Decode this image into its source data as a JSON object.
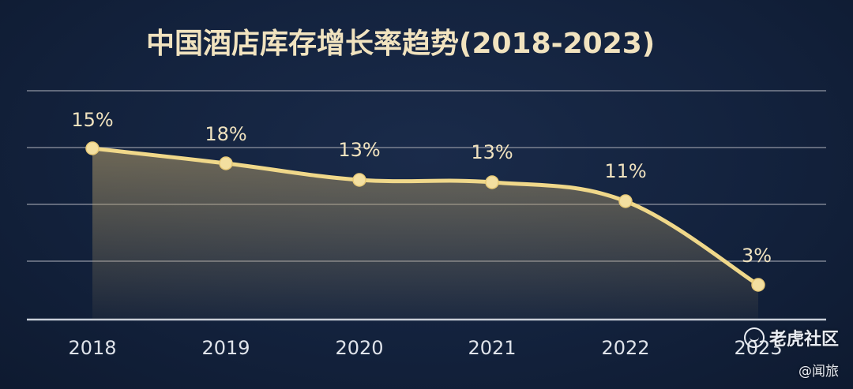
{
  "chart_data": {
    "type": "line",
    "title": "中国酒店库存增长率趋势(2018-2023)",
    "categories": [
      "2018",
      "2019",
      "2020",
      "2021",
      "2022",
      "2023"
    ],
    "values": [
      15,
      18,
      13,
      13,
      11,
      3
    ],
    "data_labels": [
      "15%",
      "18%",
      "13%",
      "13%",
      "11%",
      "3%"
    ],
    "grid": true,
    "area_fill": true,
    "colors": {
      "line": "#f0d88a",
      "marker": "#f3dfa0",
      "grid": "#7c8291",
      "text": "#f1e3bf",
      "axis_text": "#dfe3ea"
    }
  },
  "watermark": {
    "site": "老虎社区",
    "author": "@闻旅",
    "logo_icon": "tiger-logo-icon"
  }
}
